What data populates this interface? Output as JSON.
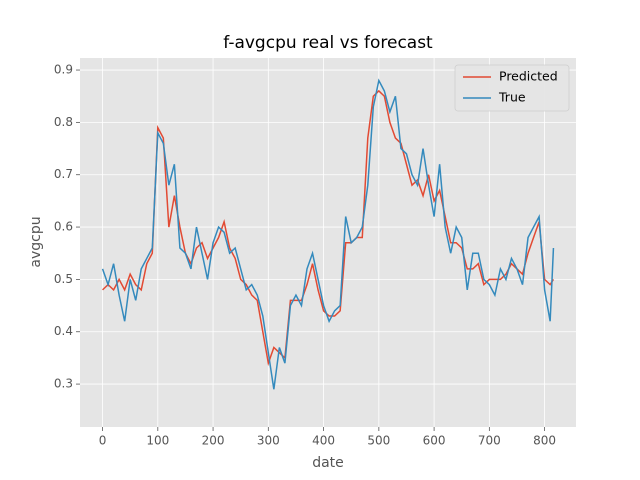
{
  "chart_data": {
    "type": "line",
    "title": "f-avgcpu real vs forecast",
    "x_label": "date",
    "y_label": "avgcpu",
    "x": [
      0,
      10,
      20,
      30,
      40,
      50,
      60,
      70,
      80,
      90,
      100,
      110,
      120,
      130,
      140,
      150,
      160,
      170,
      180,
      190,
      200,
      210,
      220,
      230,
      240,
      250,
      260,
      270,
      280,
      290,
      300,
      310,
      320,
      330,
      340,
      350,
      360,
      370,
      380,
      390,
      400,
      410,
      420,
      430,
      440,
      450,
      460,
      470,
      480,
      490,
      500,
      510,
      520,
      530,
      540,
      550,
      560,
      570,
      580,
      590,
      600,
      610,
      620,
      630,
      640,
      650,
      660,
      670,
      680,
      690,
      700,
      710,
      720,
      730,
      740,
      750,
      760,
      770,
      780,
      790,
      800,
      810,
      816
    ],
    "series": [
      {
        "name": "Predicted",
        "color": "#E24A33",
        "values": [
          0.48,
          0.49,
          0.48,
          0.5,
          0.48,
          0.51,
          0.49,
          0.48,
          0.53,
          0.55,
          0.79,
          0.77,
          0.6,
          0.66,
          0.6,
          0.55,
          0.53,
          0.56,
          0.57,
          0.54,
          0.56,
          0.58,
          0.61,
          0.56,
          0.54,
          0.5,
          0.49,
          0.47,
          0.46,
          0.4,
          0.34,
          0.37,
          0.36,
          0.35,
          0.46,
          0.46,
          0.46,
          0.49,
          0.53,
          0.48,
          0.44,
          0.43,
          0.43,
          0.44,
          0.57,
          0.57,
          0.58,
          0.58,
          0.77,
          0.85,
          0.86,
          0.85,
          0.8,
          0.77,
          0.76,
          0.72,
          0.68,
          0.69,
          0.66,
          0.7,
          0.65,
          0.67,
          0.62,
          0.57,
          0.57,
          0.56,
          0.52,
          0.52,
          0.53,
          0.49,
          0.5,
          0.5,
          0.5,
          0.51,
          0.53,
          0.52,
          0.51,
          0.55,
          0.58,
          0.61,
          0.5,
          0.49,
          0.5
        ]
      },
      {
        "name": "True",
        "color": "#348ABD",
        "values": [
          0.52,
          0.49,
          0.53,
          0.47,
          0.42,
          0.5,
          0.46,
          0.52,
          0.54,
          0.56,
          0.78,
          0.76,
          0.68,
          0.72,
          0.56,
          0.55,
          0.52,
          0.6,
          0.55,
          0.5,
          0.57,
          0.6,
          0.59,
          0.55,
          0.56,
          0.52,
          0.48,
          0.49,
          0.47,
          0.43,
          0.36,
          0.29,
          0.37,
          0.34,
          0.45,
          0.47,
          0.45,
          0.52,
          0.55,
          0.5,
          0.45,
          0.42,
          0.44,
          0.45,
          0.62,
          0.57,
          0.58,
          0.6,
          0.68,
          0.83,
          0.88,
          0.86,
          0.82,
          0.85,
          0.75,
          0.74,
          0.7,
          0.68,
          0.75,
          0.68,
          0.62,
          0.72,
          0.6,
          0.55,
          0.6,
          0.58,
          0.48,
          0.55,
          0.55,
          0.5,
          0.49,
          0.47,
          0.52,
          0.5,
          0.54,
          0.52,
          0.49,
          0.58,
          0.6,
          0.62,
          0.48,
          0.42,
          0.56
        ]
      }
    ],
    "xlim": [
      -40.8,
      856.8
    ],
    "ylim": [
      0.218,
      0.923
    ],
    "xticks": [
      0,
      100,
      200,
      300,
      400,
      500,
      600,
      700,
      800
    ],
    "yticks": [
      0.3,
      0.4,
      0.5,
      0.6,
      0.7,
      0.8,
      0.9
    ],
    "grid": true,
    "legend": "upper right"
  }
}
